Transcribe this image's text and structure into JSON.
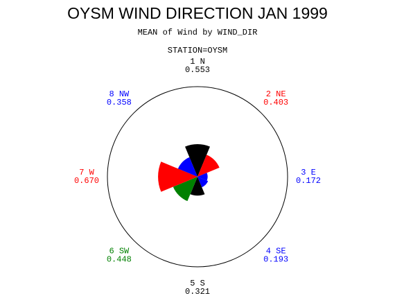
{
  "chart_data": {
    "type": "star",
    "title": "OYSM WIND DIRECTION JAN 1999",
    "subtitle": "MEAN of Wind by WIND_DIR",
    "group_label": "STATION=OYSM",
    "categories": [
      "1 N",
      "2 NE",
      "3 E",
      "4 SE",
      "5 S",
      "6 SW",
      "7 W",
      "8 NW"
    ],
    "values": [
      0.553,
      0.403,
      0.172,
      0.193,
      0.321,
      0.448,
      0.67,
      0.358
    ],
    "value_labels": [
      "0.553",
      "0.403",
      "0.172",
      "0.193",
      "0.321",
      "0.448",
      "0.670",
      "0.358"
    ],
    "colors": [
      "#000000",
      "#ff0000",
      "#0000ff",
      "#0000ff",
      "#000000",
      "#008000",
      "#ff0000",
      "#0000ff"
    ],
    "rlim": [
      0,
      1.53
    ]
  }
}
